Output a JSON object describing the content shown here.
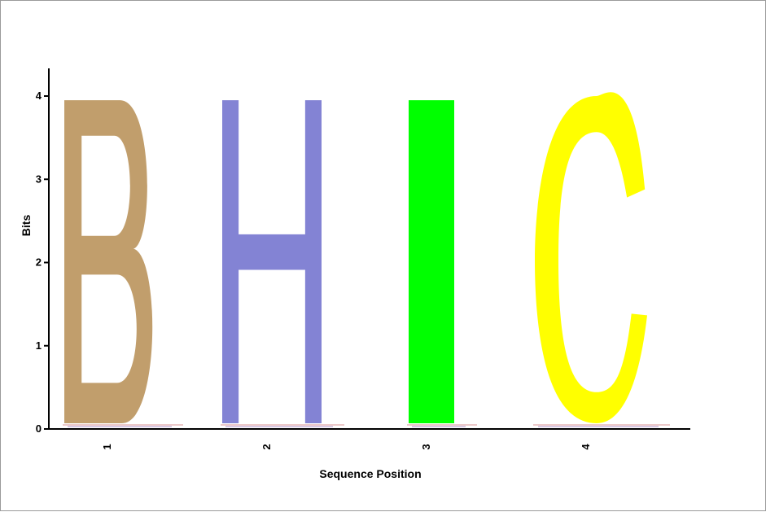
{
  "chart_data": {
    "type": "sequence-logo",
    "xlabel": "Sequence Position",
    "ylabel": "Bits",
    "ylim": [
      0,
      4
    ],
    "yticks": [
      "0",
      "1",
      "2",
      "3",
      "4"
    ],
    "positions": [
      {
        "label": "1",
        "letter": "B",
        "bits": 3.95,
        "color": "#c19e6c"
      },
      {
        "label": "2",
        "letter": "H",
        "bits": 3.95,
        "color": "#8383d4"
      },
      {
        "label": "3",
        "letter": "I",
        "bits": 3.95,
        "color": "#00ff00"
      },
      {
        "label": "4",
        "letter": "C",
        "bits": 4.0,
        "color": "#ffff00"
      }
    ]
  }
}
